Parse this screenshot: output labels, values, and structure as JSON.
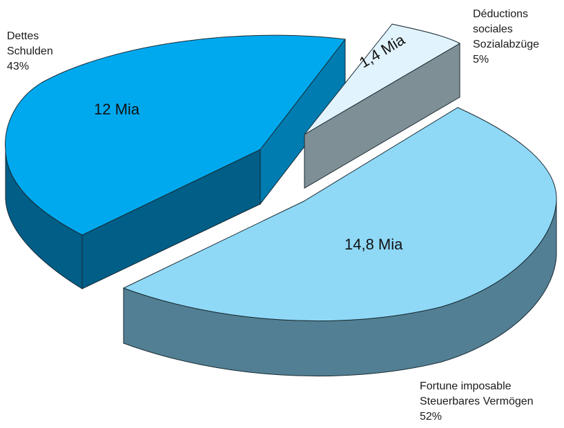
{
  "chart_data": {
    "type": "pie",
    "title": "",
    "slices": [
      {
        "key": "debts",
        "value_label": "12 Mia",
        "value": 12,
        "percent": 43,
        "percent_label": "43%",
        "label_fr": "Dettes",
        "label_de": "Schulden",
        "colors": {
          "top": "#00a9ee",
          "side": "#007cb0",
          "side_dark": "#005e87"
        }
      },
      {
        "key": "social_deductions",
        "value_label": "1,4 Mia",
        "value": 1.4,
        "percent": 5,
        "percent_label": "5%",
        "label_fr": "Déductions sociales",
        "label_fr_lines": [
          "Déductions",
          "sociales"
        ],
        "label_de": "Sozialabzüge",
        "colors": {
          "top": "#e1f3fc",
          "side": "#7f8f96"
        }
      },
      {
        "key": "taxable_wealth",
        "value_label": "14,8 Mia",
        "value": 14.8,
        "percent": 52,
        "percent_label": "52%",
        "label_fr": "Fortune imposable",
        "label_de": "Steuerbares Vermögen",
        "colors": {
          "top": "#8fd9f7",
          "side": "#527f93"
        }
      }
    ]
  }
}
